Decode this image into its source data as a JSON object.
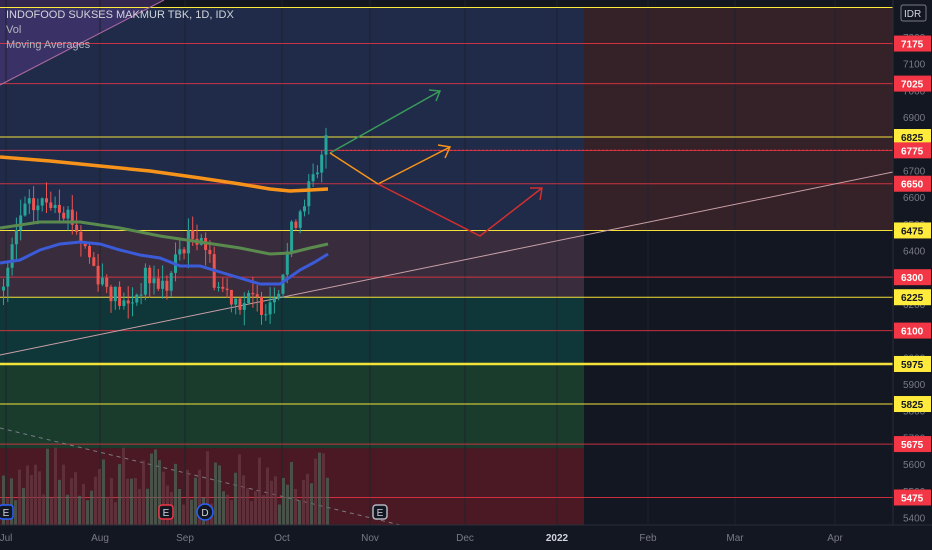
{
  "legend": {
    "title": "INDOFOOD SUKSES MAKMUR TBK, 1D, IDX",
    "vol": "Vol",
    "ma": "Moving Averages"
  },
  "chart_data": {
    "type": "candlestick",
    "currency": "IDR",
    "x_ticks": [
      "Jul",
      "Aug",
      "Sep",
      "Oct",
      "Nov",
      "Dec",
      "2022",
      "Feb",
      "Mar",
      "Apr"
    ],
    "y_ticks": [
      5400,
      5500,
      5600,
      5700,
      5800,
      5900,
      6000,
      6100,
      6200,
      6300,
      6400,
      6500,
      6600,
      6700,
      6800,
      6900,
      7000,
      7100,
      7200
    ],
    "ylim": [
      5380,
      7350
    ],
    "price_levels": [
      {
        "value": 7175,
        "color": "#f23645"
      },
      {
        "value": 7025,
        "color": "#f23645"
      },
      {
        "value": 6825,
        "color": "#ffeb3b"
      },
      {
        "value": 6775,
        "color": "#f23645"
      },
      {
        "value": 6650,
        "color": "#f23645"
      },
      {
        "value": 6475,
        "color": "#ffeb3b"
      },
      {
        "value": 6300,
        "color": "#f23645"
      },
      {
        "value": 6225,
        "color": "#ffeb3b"
      },
      {
        "value": 6100,
        "color": "#f23645"
      },
      {
        "value": 5975,
        "color": "#ffeb3b"
      },
      {
        "value": 5825,
        "color": "#ffeb3b"
      },
      {
        "value": 5675,
        "color": "#f23645"
      },
      {
        "value": 5475,
        "color": "#f23645"
      }
    ],
    "top_line_value": 7310,
    "event_markers": [
      {
        "label": "E",
        "date": "Jul",
        "color": "#2962ff"
      },
      {
        "label": "E",
        "date": "Aug",
        "color": "#f23645"
      },
      {
        "label": "D",
        "date": "Sep",
        "color": "#2962ff"
      },
      {
        "label": "E",
        "date": "Nov",
        "color": "#b2b5be"
      }
    ],
    "ma_series": [
      {
        "name": "MA fast",
        "color": "#3b5bd9"
      },
      {
        "name": "MA mid",
        "color": "#5b8a4e"
      },
      {
        "name": "MA slow",
        "color": "#f7931a"
      }
    ]
  }
}
